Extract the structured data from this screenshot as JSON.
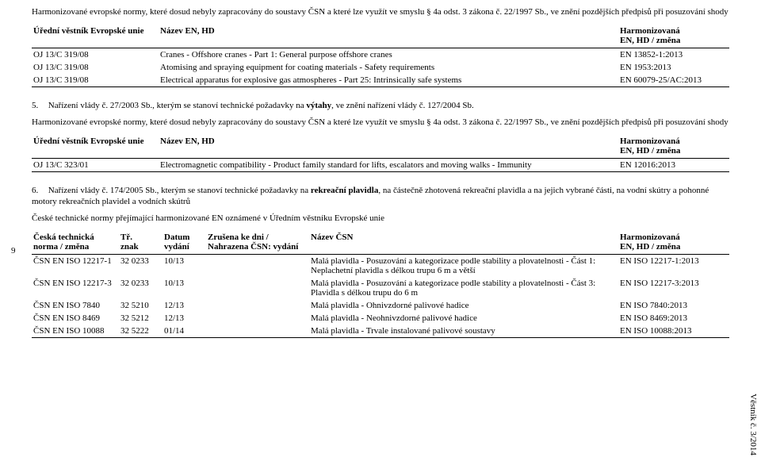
{
  "sidePageNum": "9",
  "sideLabel": "Věstník č. 3/2014",
  "introTop": "Harmonizované evropské normy, které dosud nebyly zapracovány do soustavy ČSN a které lze využít ve smyslu § 4a odst. 3 zákona č. 22/1997 Sb., ve znění pozdějších předpisů při posuzování shody",
  "table1": {
    "headers": {
      "col1": "Úřední věstník Evropské unie",
      "col2": "Název EN, HD",
      "col3a": "Harmonizovaná",
      "col3b": "EN, HD / změna"
    },
    "rows": [
      {
        "oj": "OJ 13/C 319/08",
        "name": "Cranes - Offshore cranes - Part 1: General purpose offshore cranes",
        "harm": "EN 13852-1:2013"
      },
      {
        "oj": "OJ 13/C 319/08",
        "name": "Atomising and spraying equipment for coating materials - Safety requirements",
        "harm": "EN 1953:2013"
      },
      {
        "oj": "OJ 13/C 319/08",
        "name": "Electrical apparatus for explosive gas atmospheres - Part 25: Intrinsically safe systems",
        "harm": "EN 60079-25/AC:2013"
      }
    ]
  },
  "section5": {
    "num": "5.",
    "title": "Nařízení vlády č. 27/2003 Sb., kterým se stanoví technické požadavky na výtahy, ve znění nařízení vlády č. 127/2004 Sb.",
    "boldPart": "výtahy",
    "intro": "Harmonizované evropské normy, které dosud nebyly zapracovány do soustavy ČSN a které lze využít ve smyslu § 4a odst. 3 zákona č. 22/1997 Sb., ve znění pozdějších předpisů při posuzování shody"
  },
  "table2": {
    "headers": {
      "col1": "Úřední věstník Evropské unie",
      "col2": "Název EN, HD",
      "col3a": "Harmonizovaná",
      "col3b": "EN, HD / změna"
    },
    "rows": [
      {
        "oj": "OJ 13/C 323/01",
        "name": "Electromagnetic compatibility - Product family standard for lifts, escalators and moving walks - Immunity",
        "harm": "EN 12016:2013"
      }
    ]
  },
  "section6": {
    "num": "6.",
    "titlePre": "Nařízení vlády č. 174/2005 Sb., kterým se stanoví technické požadavky na ",
    "bold": "rekreační plavidla",
    "titlePost": ", na částečně zhotovená rekreační plavidla a na jejich vybrané části, na vodní skútry a pohonné motory rekreačních plavidel a vodních skútrů",
    "intro": "České technické normy přejímající harmonizované EN oznámené v Úředním věstníku Evropské unie"
  },
  "table3": {
    "headers": {
      "c1a": "Česká technická",
      "c1b": "norma / změna",
      "c2a": "Tř.",
      "c2b": "znak",
      "c3a": "Datum",
      "c3b": "vydání",
      "c4a": "Zrušena ke dni /",
      "c4b": "Nahrazena ČSN: vydání",
      "c5": "Název ČSN",
      "c6a": "Harmonizovaná",
      "c6b": "EN, HD / změna"
    },
    "rows": [
      {
        "csn": "ČSN EN ISO 12217-1",
        "tr": "32 0233",
        "datum": "10/13",
        "zrus": "",
        "name": "Malá plavidla - Posuzování a kategorizace podle stability a plovatelnosti - Část 1: Neplachetní plavidla s délkou trupu 6 m a větší",
        "harm": "EN ISO 12217-1:2013"
      },
      {
        "csn": "ČSN EN ISO 12217-3",
        "tr": "32 0233",
        "datum": "10/13",
        "zrus": "",
        "name": "Malá plavidla - Posuzování a kategorizace podle stability a plovatelnosti - Část 3: Plavidla s délkou trupu do 6 m",
        "harm": "EN ISO 12217-3:2013"
      },
      {
        "csn": "ČSN EN ISO 7840",
        "tr": "32 5210",
        "datum": "12/13",
        "zrus": "",
        "name": "Malá plavidla - Ohnivzdorné palivové hadice",
        "harm": "EN ISO 7840:2013"
      },
      {
        "csn": "ČSN EN ISO 8469",
        "tr": "32 5212",
        "datum": "12/13",
        "zrus": "",
        "name": "Malá plavidla - Neohnivzdorné palivové hadice",
        "harm": "EN ISO 8469:2013"
      },
      {
        "csn": "ČSN EN ISO 10088",
        "tr": "32 5222",
        "datum": "01/14",
        "zrus": "",
        "name": "Malá plavidla - Trvale instalované palivové soustavy",
        "harm": "EN ISO 10088:2013"
      }
    ]
  }
}
